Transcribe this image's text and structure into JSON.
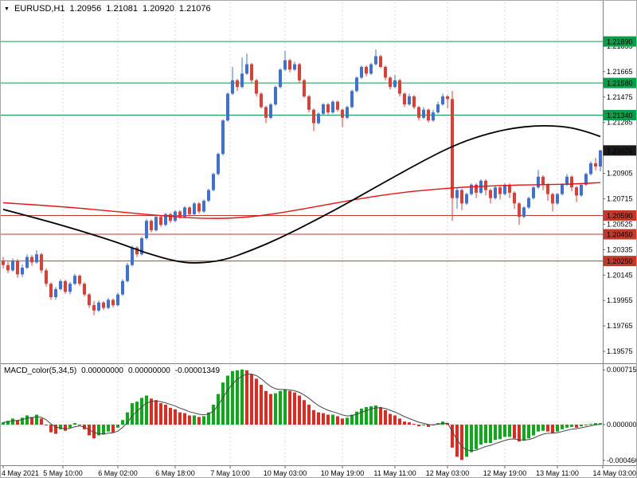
{
  "header": {
    "symbol": "EURUSD,H1",
    "open": "1.20956",
    "high": "1.21081",
    "low": "1.20920",
    "close": "1.21076"
  },
  "indicator_header": {
    "name": "MACD_color(5,34,5)",
    "values": [
      "0.00000000",
      "0.00000000",
      "-0.00001349"
    ]
  },
  "colors": {
    "background": "#ffffff",
    "candle_up": "#3e71d0",
    "candle_down": "#dd3f35",
    "ma_red": "#e81212",
    "ma_black": "#000000",
    "level_resistance": "#0d9c4a",
    "level_support": "#c0392b",
    "current_price_box": "#1a1a1a",
    "macd_up": "#0ca919",
    "macd_down": "#e02a20",
    "macd_signal": "#444444",
    "grid": "#d9d9d9",
    "border": "#808080",
    "axis_text": "#000000"
  },
  "chart_data": {
    "type": "candlestick",
    "symbol": "EURUSD",
    "timeframe": "H1",
    "title": "EURUSD,H1 1.20956 1.21081 1.20920 1.21076",
    "candles": [
      [
        1.2025,
        1.2028,
        1.20195,
        1.2022
      ],
      [
        1.2022,
        1.20245,
        1.2016,
        1.2018
      ],
      [
        1.2018,
        1.2027,
        1.2017,
        1.2025
      ],
      [
        1.2025,
        1.20265,
        1.20125,
        1.2015
      ],
      [
        1.2015,
        1.20225,
        1.2013,
        1.202
      ],
      [
        1.202,
        1.203,
        1.2019,
        1.2028
      ],
      [
        1.2028,
        1.20295,
        1.20215,
        1.2024
      ],
      [
        1.2024,
        1.2033,
        1.2023,
        1.203
      ],
      [
        1.203,
        1.2031,
        1.2016,
        1.2018
      ],
      [
        1.2018,
        1.20195,
        1.2006,
        1.2008
      ],
      [
        1.2008,
        1.2009,
        1.1996,
        1.1998
      ],
      [
        1.1998,
        1.20055,
        1.1996,
        1.2004
      ],
      [
        1.2004,
        1.20115,
        1.2003,
        1.201
      ],
      [
        1.201,
        1.2011,
        1.20005,
        1.2002
      ],
      [
        1.2002,
        1.20095,
        1.2,
        1.2008
      ],
      [
        1.2008,
        1.20155,
        1.2007,
        1.2014
      ],
      [
        1.2014,
        1.2015,
        1.20065,
        1.2008
      ],
      [
        1.2008,
        1.2009,
        1.19985,
        1.2
      ],
      [
        1.2,
        1.2001,
        1.199,
        1.1992
      ],
      [
        1.1992,
        1.1995,
        1.19845,
        1.1988
      ],
      [
        1.1988,
        1.19955,
        1.1987,
        1.1994
      ],
      [
        1.1994,
        1.1995,
        1.19885,
        1.199
      ],
      [
        1.199,
        1.19975,
        1.1989,
        1.1996
      ],
      [
        1.1996,
        1.1997,
        1.19905,
        1.1992
      ],
      [
        1.1992,
        1.20015,
        1.1991,
        1.2
      ],
      [
        1.2,
        1.20115,
        1.1999,
        1.201
      ],
      [
        1.201,
        1.20235,
        1.2009,
        1.2022
      ],
      [
        1.2022,
        1.20365,
        1.2021,
        1.2035
      ],
      [
        1.2035,
        1.2036,
        1.2028,
        1.203
      ],
      [
        1.203,
        1.2043,
        1.2029,
        1.2042
      ],
      [
        1.2042,
        1.20565,
        1.2041,
        1.2055
      ],
      [
        1.2055,
        1.2056,
        1.20465,
        1.2048
      ],
      [
        1.2048,
        1.2059,
        1.2047,
        1.2058
      ],
      [
        1.2058,
        1.2059,
        1.20505,
        1.2052
      ],
      [
        1.2052,
        1.2061,
        1.2051,
        1.206
      ],
      [
        1.206,
        1.2061,
        1.20535,
        1.2055
      ],
      [
        1.2055,
        1.2063,
        1.2054,
        1.2062
      ],
      [
        1.2062,
        1.2063,
        1.20565,
        1.2058
      ],
      [
        1.2058,
        1.2066,
        1.2057,
        1.2065
      ],
      [
        1.2065,
        1.2066,
        1.20585,
        1.206
      ],
      [
        1.206,
        1.2069,
        1.2059,
        1.2068
      ],
      [
        1.2068,
        1.2069,
        1.20605,
        1.2062
      ],
      [
        1.2062,
        1.2071,
        1.2061,
        1.207
      ],
      [
        1.207,
        1.2079,
        1.2069,
        1.2078
      ],
      [
        1.2078,
        1.2091,
        1.2077,
        1.209
      ],
      [
        1.209,
        1.2106,
        1.2089,
        1.2105
      ],
      [
        1.2105,
        1.2131,
        1.2104,
        1.213
      ],
      [
        1.213,
        1.2151,
        1.2129,
        1.215
      ],
      [
        1.215,
        1.217,
        1.2149,
        1.216
      ],
      [
        1.216,
        1.2161,
        1.2152,
        1.2155
      ],
      [
        1.2155,
        1.2177,
        1.2154,
        1.2165
      ],
      [
        1.2165,
        1.218,
        1.2164,
        1.2172
      ],
      [
        1.2172,
        1.2173,
        1.2158,
        1.216
      ],
      [
        1.216,
        1.2161,
        1.2148,
        1.215
      ],
      [
        1.215,
        1.2151,
        1.2139,
        1.214
      ],
      [
        1.214,
        1.2141,
        1.2128,
        1.2132
      ],
      [
        1.2132,
        1.2143,
        1.2131,
        1.2142
      ],
      [
        1.2142,
        1.2156,
        1.2141,
        1.2155
      ],
      [
        1.2155,
        1.2169,
        1.2154,
        1.2168
      ],
      [
        1.2168,
        1.2182,
        1.2167,
        1.2175
      ],
      [
        1.2175,
        1.2176,
        1.2166,
        1.2168
      ],
      [
        1.2168,
        1.2174,
        1.2167,
        1.2172
      ],
      [
        1.2172,
        1.2173,
        1.2158,
        1.216
      ],
      [
        1.216,
        1.2161,
        1.2147,
        1.2148
      ],
      [
        1.2148,
        1.2149,
        1.2136,
        1.2138
      ],
      [
        1.2138,
        1.2139,
        1.2122,
        1.2128
      ],
      [
        1.2128,
        1.2136,
        1.2127,
        1.2135
      ],
      [
        1.2135,
        1.2143,
        1.2134,
        1.2142
      ],
      [
        1.2142,
        1.2143,
        1.21345,
        1.2136
      ],
      [
        1.2136,
        1.2145,
        1.2135,
        1.2144
      ],
      [
        1.2144,
        1.2145,
        1.21365,
        1.2138
      ],
      [
        1.2138,
        1.2139,
        1.2125,
        1.2132
      ],
      [
        1.2132,
        1.2141,
        1.2131,
        1.214
      ],
      [
        1.214,
        1.2153,
        1.2139,
        1.2152
      ],
      [
        1.2152,
        1.2163,
        1.2151,
        1.2162
      ],
      [
        1.2162,
        1.2171,
        1.2161,
        1.217
      ],
      [
        1.217,
        1.2171,
        1.2163,
        1.2165
      ],
      [
        1.2165,
        1.2173,
        1.2164,
        1.2172
      ],
      [
        1.2172,
        1.2183,
        1.2171,
        1.2178
      ],
      [
        1.2178,
        1.2179,
        1.2169,
        1.217
      ],
      [
        1.217,
        1.2171,
        1.216,
        1.2162
      ],
      [
        1.2162,
        1.2163,
        1.2153,
        1.2155
      ],
      [
        1.2155,
        1.2164,
        1.2154,
        1.216
      ],
      [
        1.216,
        1.2161,
        1.2148,
        1.215
      ],
      [
        1.215,
        1.2151,
        1.214,
        1.2142
      ],
      [
        1.2142,
        1.215,
        1.2141,
        1.2148
      ],
      [
        1.2148,
        1.2149,
        1.21385,
        1.214
      ],
      [
        1.214,
        1.2141,
        1.213,
        1.2132
      ],
      [
        1.2132,
        1.214,
        1.2131,
        1.2138
      ],
      [
        1.2138,
        1.2139,
        1.21285,
        1.213
      ],
      [
        1.213,
        1.2138,
        1.2129,
        1.2136
      ],
      [
        1.2136,
        1.2144,
        1.2135,
        1.2142
      ],
      [
        1.2142,
        1.215,
        1.2141,
        1.2148
      ],
      [
        1.2148,
        1.2149,
        1.2139,
        1.2146
      ],
      [
        1.2146,
        1.2152,
        1.2055,
        1.2072
      ],
      [
        1.2072,
        1.208,
        1.2064,
        1.2078
      ],
      [
        1.2078,
        1.2079,
        1.2063,
        1.2068
      ],
      [
        1.2068,
        1.2076,
        1.2067,
        1.2075
      ],
      [
        1.2075,
        1.2083,
        1.2074,
        1.2082
      ],
      [
        1.2082,
        1.2083,
        1.2072,
        1.2076
      ],
      [
        1.2076,
        1.2086,
        1.2075,
        1.2085
      ],
      [
        1.2085,
        1.2086,
        1.2074,
        1.2078
      ],
      [
        1.2078,
        1.2079,
        1.2068,
        1.2072
      ],
      [
        1.2072,
        1.2081,
        1.2071,
        1.208
      ],
      [
        1.208,
        1.2081,
        1.2071,
        1.2075
      ],
      [
        1.2075,
        1.2083,
        1.2074,
        1.2082
      ],
      [
        1.2082,
        1.2083,
        1.2072,
        1.2076
      ],
      [
        1.2076,
        1.2077,
        1.2064,
        1.2068
      ],
      [
        1.2068,
        1.2069,
        1.2052,
        1.2058
      ],
      [
        1.2058,
        1.2066,
        1.2057,
        1.2065
      ],
      [
        1.2065,
        1.2073,
        1.2064,
        1.2072
      ],
      [
        1.2072,
        1.2081,
        1.2071,
        1.208
      ],
      [
        1.208,
        1.2093,
        1.2079,
        1.2088
      ],
      [
        1.2088,
        1.2089,
        1.2078,
        1.2082
      ],
      [
        1.2082,
        1.2083,
        1.207,
        1.2075
      ],
      [
        1.2075,
        1.2076,
        1.2062,
        1.2068
      ],
      [
        1.2068,
        1.2076,
        1.2067,
        1.2075
      ],
      [
        1.2075,
        1.2083,
        1.2074,
        1.2082
      ],
      [
        1.2082,
        1.209,
        1.2081,
        1.2088
      ],
      [
        1.2088,
        1.2089,
        1.2077,
        1.208
      ],
      [
        1.208,
        1.2081,
        1.2069,
        1.2074
      ],
      [
        1.2074,
        1.2083,
        1.2073,
        1.2082
      ],
      [
        1.2082,
        1.2091,
        1.2081,
        1.209
      ],
      [
        1.209,
        1.20995,
        1.2089,
        1.2098
      ],
      [
        1.2098,
        1.2102,
        1.2093,
        1.20956
      ],
      [
        1.20956,
        1.21081,
        1.2092,
        1.21076
      ]
    ],
    "overlays": {
      "ma_red": {
        "name": "moving-average-slow-red",
        "points": [
          [
            0,
            1.20685
          ],
          [
            12,
            1.20658
          ],
          [
            24,
            1.20618
          ],
          [
            34,
            1.20585
          ],
          [
            42,
            1.20566
          ],
          [
            50,
            1.20572
          ],
          [
            58,
            1.20608
          ],
          [
            66,
            1.2066
          ],
          [
            74,
            1.20712
          ],
          [
            82,
            1.20756
          ],
          [
            90,
            1.20786
          ],
          [
            98,
            1.20806
          ],
          [
            106,
            1.20816
          ],
          [
            114,
            1.20821
          ],
          [
            120,
            1.20826
          ],
          [
            125,
            1.20836
          ]
        ]
      },
      "ma_black": {
        "name": "moving-average-long-black",
        "points": [
          [
            0,
            1.20635
          ],
          [
            8,
            1.2056
          ],
          [
            16,
            1.20478
          ],
          [
            24,
            1.20388
          ],
          [
            30,
            1.20308
          ],
          [
            36,
            1.20248
          ],
          [
            40,
            1.20232
          ],
          [
            46,
            1.20252
          ],
          [
            52,
            1.2033
          ],
          [
            58,
            1.20422
          ],
          [
            64,
            1.2053
          ],
          [
            70,
            1.20642
          ],
          [
            76,
            1.20762
          ],
          [
            82,
            1.20882
          ],
          [
            88,
            1.21
          ],
          [
            94,
            1.21108
          ],
          [
            100,
            1.21188
          ],
          [
            106,
            1.2124
          ],
          [
            112,
            1.21264
          ],
          [
            118,
            1.21254
          ],
          [
            122,
            1.21218
          ],
          [
            125,
            1.2118
          ]
        ]
      }
    },
    "levels": {
      "resistance": [
        {
          "price": 1.2189,
          "label": "1.21890"
        },
        {
          "price": 1.2158,
          "label": "1.21580"
        },
        {
          "price": 1.2134,
          "label": "1.21340"
        }
      ],
      "support": [
        {
          "price": 1.2059,
          "label": "1.20590"
        },
        {
          "price": 1.2045,
          "label": "1.20450"
        },
        {
          "price": 1.2025,
          "label": "1.20250"
        }
      ],
      "current_price": {
        "price": 1.21076,
        "label": "1.21076"
      }
    },
    "price_axis": {
      "ylim": [
        1.19498,
        1.22182
      ],
      "labels": [
        "1.21855",
        "1.21665",
        "1.21475",
        "1.21285",
        "1.20905",
        "1.20715",
        "1.20525",
        "1.20335",
        "1.20145",
        "1.19955",
        "1.19765",
        "1.19575"
      ]
    },
    "time_axis": {
      "ticks": [
        {
          "label": "4 May 2021",
          "i": 0,
          "grid": false
        },
        {
          "label": "5 May 10:00",
          "i": 12.5,
          "grid": true
        },
        {
          "label": "6 May 02:00",
          "i": 24,
          "grid": true
        },
        {
          "label": "6 May 18:00",
          "i": 36,
          "grid": true
        },
        {
          "label": "7 May 10:00",
          "i": 47.5,
          "grid": true
        },
        {
          "label": "10 May 03:00",
          "i": 59,
          "grid": true
        },
        {
          "label": "10 May 19:00",
          "i": 71,
          "grid": true
        },
        {
          "label": "11 May 11:00",
          "i": 82,
          "grid": true
        },
        {
          "label": "12 May 03:00",
          "i": 93,
          "grid": true
        },
        {
          "label": "12 May 19:00",
          "i": 105,
          "grid": true
        },
        {
          "label": "13 May 11:00",
          "i": 116,
          "grid": true
        },
        {
          "label": "14 May 03:00",
          "i": 125.5,
          "grid": false
        }
      ]
    },
    "macd": {
      "type": "histogram+line",
      "name": "MACD_color(5,34,5)",
      "ylim": [
        -0.00052,
        0.00077
      ],
      "axis_labels": [
        {
          "v": 0.0007155,
          "text": "0.0007155"
        },
        {
          "v": 0.0,
          "text": "0.0000000"
        },
        {
          "v": -0.0004665,
          "text": "-0.0004665"
        }
      ],
      "values": [
        3e-05,
        5e-05,
        8e-05,
        6e-05,
        9e-05,
        0.00012,
        0.0001,
        0.00013,
        8e-05,
        0.0,
        -0.0001,
        -0.00012,
        -6e-05,
        -8e-05,
        -4e-05,
        2e-05,
        0.0,
        -6e-05,
        -0.00014,
        -0.00018,
        -0.00014,
        -0.00013,
        -9e-05,
        -0.0001,
        -4e-05,
        6e-05,
        0.00016,
        0.00028,
        0.0003,
        0.00035,
        0.00038,
        0.00034,
        0.00032,
        0.00028,
        0.00026,
        0.00022,
        0.0002,
        0.00016,
        0.00015,
        0.00012,
        0.00012,
        0.0001,
        0.00011,
        0.00016,
        0.00026,
        0.0004,
        0.00055,
        0.00064,
        0.0007,
        0.00071,
        0.00072,
        0.00071,
        0.00066,
        0.0006,
        0.00052,
        0.00044,
        0.0004,
        0.00041,
        0.00044,
        0.00046,
        0.00044,
        0.00042,
        0.00038,
        0.00032,
        0.00026,
        0.00019,
        0.00016,
        0.00015,
        0.00013,
        0.00013,
        0.00011,
        8e-05,
        9e-05,
        0.00013,
        0.00017,
        0.00021,
        0.00023,
        0.00024,
        0.00025,
        0.00023,
        0.00019,
        0.00014,
        0.00012,
        8e-05,
        4e-05,
        3e-05,
        1e-05,
        -2e-05,
        -1e-05,
        -3e-05,
        -1e-05,
        2e-05,
        4e-05,
        2e-05,
        -0.0003,
        -0.00042,
        -0.00046,
        -0.00042,
        -0.00036,
        -0.00032,
        -0.00026,
        -0.00024,
        -0.00024,
        -0.0002,
        -0.00019,
        -0.00016,
        -0.00016,
        -0.00018,
        -0.00022,
        -0.00021,
        -0.00018,
        -0.00014,
        -9e-05,
        -8e-05,
        -9e-05,
        -0.00011,
        -9e-05,
        -6e-05,
        -4e-05,
        -3e-05,
        -4e-05,
        -2e-05,
        0.0,
        1e-05,
        2e-05,
        2e-05
      ]
    }
  }
}
